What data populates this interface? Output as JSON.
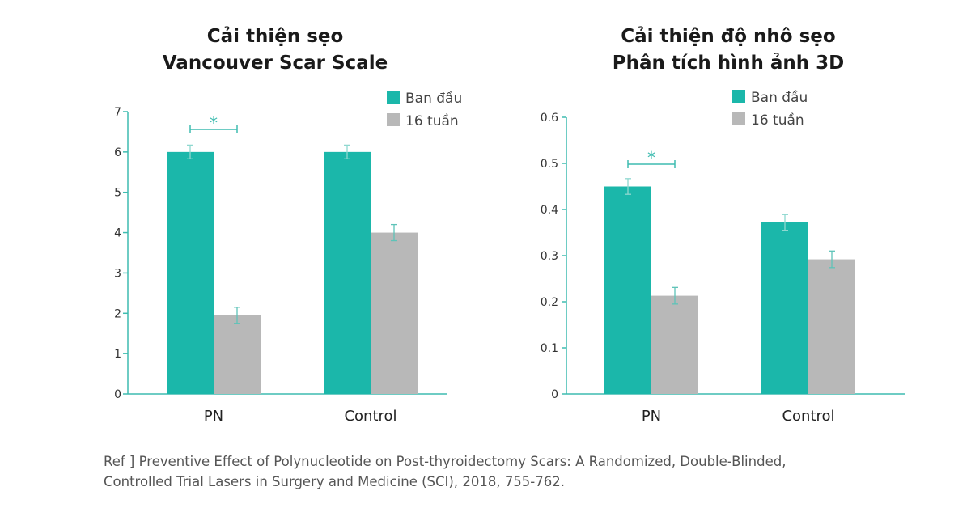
{
  "colors": {
    "baseline": "#1bb7aa",
    "week16": "#b8b8b8",
    "axis": "#3fbcb0",
    "text": "#222222"
  },
  "chart_data": [
    {
      "type": "bar",
      "title": "Cải thiện sẹo",
      "subtitle": "Vancouver Scar Scale",
      "categories": [
        "PN",
        "Control"
      ],
      "series": [
        {
          "name": "Ban đầu",
          "values": [
            6.0,
            6.0
          ],
          "errors": [
            0.17,
            0.17
          ]
        },
        {
          "name": "16 tuần",
          "values": [
            1.95,
            4.0
          ],
          "errors": [
            0.2,
            0.2
          ]
        }
      ],
      "ylim": [
        0,
        7
      ],
      "yticks": [
        "0",
        "1",
        "2",
        "3",
        "4",
        "5",
        "6",
        "7"
      ],
      "significance": [
        {
          "category": "PN",
          "label": "*"
        }
      ],
      "legend": "top-right"
    },
    {
      "type": "bar",
      "title": "Cải thiện độ nhô sẹo",
      "subtitle": "Phân tích hình ảnh 3D",
      "categories": [
        "PN",
        "Control"
      ],
      "series": [
        {
          "name": "Ban đầu",
          "values": [
            0.45,
            0.372
          ],
          "errors": [
            0.017,
            0.017
          ]
        },
        {
          "name": "16 tuần",
          "values": [
            0.213,
            0.292
          ],
          "errors": [
            0.018,
            0.018
          ]
        }
      ],
      "ylim": [
        0,
        0.6
      ],
      "yticks": [
        "0",
        "0.1",
        "0.2",
        "0.3",
        "0.4",
        "0.5",
        "0.6"
      ],
      "significance": [
        {
          "category": "PN",
          "label": "*"
        }
      ],
      "legend": "top-right"
    }
  ],
  "reference": {
    "line1": "Ref ] Preventive Effect of Polynucleotide on Post-thyroidectomy Scars: A Randomized, Double-Blinded,",
    "line2": "Controlled Trial Lasers in Surgery and Medicine (SCI), 2018, 755-762."
  }
}
